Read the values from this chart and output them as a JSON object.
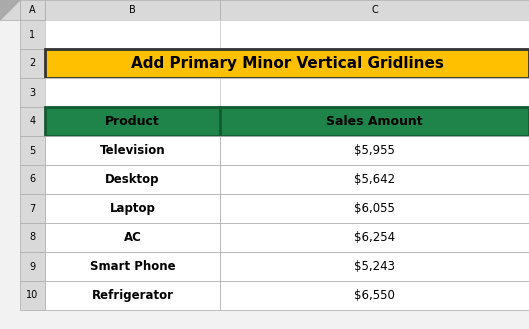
{
  "title": "Add Primary Minor Vertical Gridlines",
  "title_bg": "#FFC000",
  "title_text_color": "#000000",
  "title_border": "#333333",
  "header_bg": "#1E8449",
  "header_text_color": "#000000",
  "header_border": "#145a32",
  "col_header_bg": "#D9D9D9",
  "col_header_text": "#000000",
  "row_header_bg": "#D9D9D9",
  "row_header_text": "#000000",
  "row_bg": "#FFFFFF",
  "row_text_color": "#000000",
  "fig_bg": "#F2F2F2",
  "columns": [
    "Product",
    "Sales Amount"
  ],
  "rows": [
    [
      "Television",
      "$5,955"
    ],
    [
      "Desktop",
      "$5,642"
    ],
    [
      "Laptop",
      "$6,055"
    ],
    [
      "AC",
      "$6,254"
    ],
    [
      "Smart Phone",
      "$5,243"
    ],
    [
      "Refrigerator",
      "$6,550"
    ]
  ],
  "col_letters": [
    "A",
    "B",
    "C"
  ],
  "row_numbers": [
    "1",
    "2",
    "3",
    "4",
    "5",
    "6",
    "7",
    "8",
    "9",
    "10"
  ],
  "figsize": [
    5.29,
    3.29
  ],
  "dpi": 100
}
